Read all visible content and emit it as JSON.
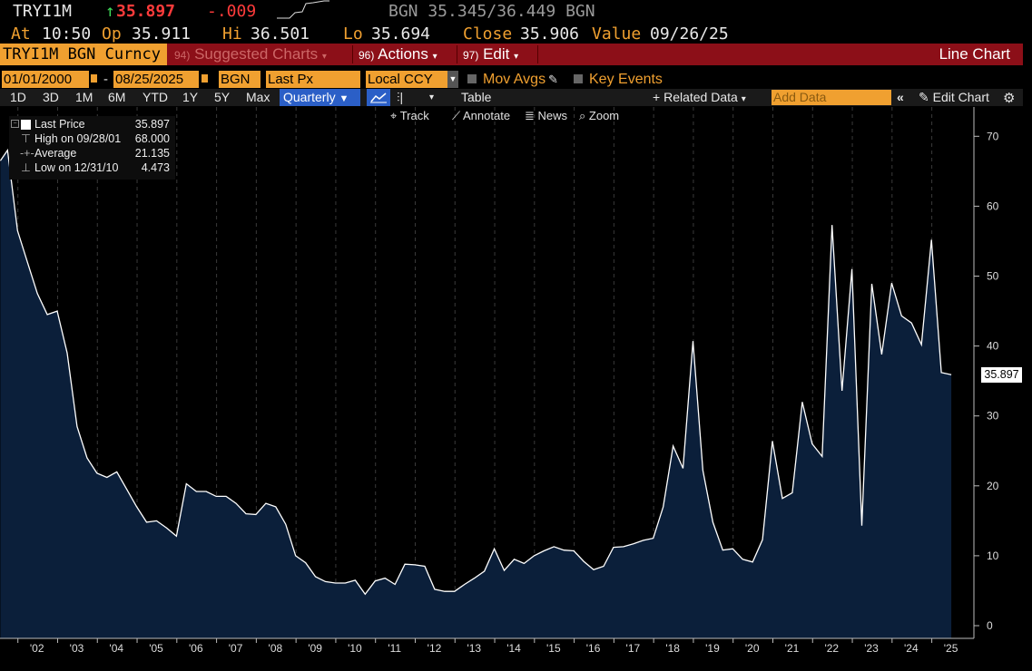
{
  "quote": {
    "ticker": "TRYI1M",
    "last": "35.897",
    "change": "-.009",
    "range_text": "BGN 35.345/36.449 BGN",
    "at_label": "At",
    "at_value": "10:50",
    "op_label": "Op",
    "op_value": "35.911",
    "hi_label": "Hi",
    "hi_value": "36.501",
    "lo_label": "Lo",
    "lo_value": "35.694",
    "close_label": "Close",
    "close_value": "35.906",
    "value_label": "Value",
    "value_date": "09/26/25"
  },
  "toolbar": {
    "security": "TRYI1M BGN Curncy",
    "suggested_num": "94)",
    "suggested_label": "Suggested Charts",
    "actions_num": "96)",
    "actions_label": "Actions",
    "edit_num": "97)",
    "edit_label": "Edit",
    "view_title": "Line Chart"
  },
  "inputs": {
    "start_date": "01/01/2000",
    "dash": "-",
    "end_date": "08/25/2025",
    "pricing_source": "BGN",
    "field": "Last Px",
    "currency": "Local CCY",
    "mov_avgs": "Mov Avgs",
    "key_events": "Key Events"
  },
  "periods": [
    "1D",
    "3D",
    "1M",
    "6M",
    "YTD",
    "1Y",
    "5Y",
    "Max"
  ],
  "period_selected": "Quarterly",
  "period_bar": {
    "table": "Table",
    "related_data": "Related Data",
    "add_data_placeholder": "Add Data",
    "edit_chart": "Edit Chart"
  },
  "chart_tools": [
    "Track",
    "Annotate",
    "News",
    "Zoom"
  ],
  "legend": {
    "last_label": "Last Price",
    "last_value": "35.897",
    "high_label": "High on 09/28/01",
    "high_value": "68.000",
    "avg_label": "Average",
    "avg_value": "21.135",
    "low_label": "Low on 12/31/10",
    "low_value": "4.473"
  },
  "colors": {
    "area_fill": "#0b1f3a",
    "line": "#ffffff",
    "accent_orange": "#f0a030",
    "header_red": "#8c0f18",
    "up_green": "#3fdc5a",
    "down_red": "#ff3b3b"
  },
  "chart_data": {
    "type": "area",
    "title": "",
    "xlabel": "",
    "ylabel": "",
    "ylim": [
      -2,
      74
    ],
    "xlim": [
      2001.55,
      2025.9
    ],
    "yticks": [
      0,
      10,
      20,
      30,
      40,
      50,
      60,
      70
    ],
    "y_axis_side": "right",
    "grid": "vertical dashed at year ticks",
    "xticks": [
      {
        "x": 2002.0,
        "label": "'02"
      },
      {
        "x": 2003.0,
        "label": "'03"
      },
      {
        "x": 2004.0,
        "label": "'04"
      },
      {
        "x": 2005.0,
        "label": "'05"
      },
      {
        "x": 2006.0,
        "label": "'06"
      },
      {
        "x": 2007.0,
        "label": "'07"
      },
      {
        "x": 2008.0,
        "label": "'08"
      },
      {
        "x": 2009.0,
        "label": "'09"
      },
      {
        "x": 2010.0,
        "label": "'10"
      },
      {
        "x": 2011.0,
        "label": "'11"
      },
      {
        "x": 2012.0,
        "label": "'12"
      },
      {
        "x": 2013.0,
        "label": "'13"
      },
      {
        "x": 2014.0,
        "label": "'14"
      },
      {
        "x": 2015.0,
        "label": "'15"
      },
      {
        "x": 2016.0,
        "label": "'16"
      },
      {
        "x": 2017.0,
        "label": "'17"
      },
      {
        "x": 2018.0,
        "label": "'18"
      },
      {
        "x": 2019.0,
        "label": "'19"
      },
      {
        "x": 2020.0,
        "label": "'20"
      },
      {
        "x": 2021.0,
        "label": "'21"
      },
      {
        "x": 2022.0,
        "label": "'22"
      },
      {
        "x": 2023.0,
        "label": "'23"
      },
      {
        "x": 2024.0,
        "label": "'24"
      },
      {
        "x": 2025.0,
        "label": "'25"
      }
    ],
    "last_value_label": "35.897",
    "series": [
      {
        "name": "Last Price",
        "points": [
          [
            2001.56,
            66.5
          ],
          [
            2001.74,
            68.0
          ],
          [
            2001.99,
            56.5
          ],
          [
            2002.24,
            52.0
          ],
          [
            2002.49,
            47.5
          ],
          [
            2002.74,
            44.5
          ],
          [
            2002.99,
            45.0
          ],
          [
            2003.24,
            39.0
          ],
          [
            2003.49,
            28.5
          ],
          [
            2003.74,
            24.0
          ],
          [
            2003.99,
            21.8
          ],
          [
            2004.24,
            21.2
          ],
          [
            2004.49,
            22.0
          ],
          [
            2004.74,
            19.5
          ],
          [
            2004.99,
            17.0
          ],
          [
            2005.24,
            14.8
          ],
          [
            2005.49,
            15.0
          ],
          [
            2005.74,
            14.0
          ],
          [
            2005.99,
            12.8
          ],
          [
            2006.24,
            20.3
          ],
          [
            2006.49,
            19.2
          ],
          [
            2006.74,
            19.2
          ],
          [
            2006.99,
            18.5
          ],
          [
            2007.24,
            18.5
          ],
          [
            2007.49,
            17.5
          ],
          [
            2007.74,
            16.0
          ],
          [
            2007.99,
            15.9
          ],
          [
            2008.24,
            17.5
          ],
          [
            2008.49,
            17.0
          ],
          [
            2008.74,
            14.5
          ],
          [
            2008.99,
            10.0
          ],
          [
            2009.24,
            9.0
          ],
          [
            2009.49,
            7.0
          ],
          [
            2009.74,
            6.3
          ],
          [
            2009.99,
            6.1
          ],
          [
            2010.24,
            6.1
          ],
          [
            2010.49,
            6.5
          ],
          [
            2010.74,
            4.5
          ],
          [
            2010.99,
            6.4
          ],
          [
            2011.24,
            6.8
          ],
          [
            2011.49,
            5.9
          ],
          [
            2011.74,
            8.8
          ],
          [
            2011.99,
            8.7
          ],
          [
            2012.24,
            8.5
          ],
          [
            2012.49,
            5.2
          ],
          [
            2012.74,
            4.9
          ],
          [
            2012.99,
            4.9
          ],
          [
            2013.24,
            5.9
          ],
          [
            2013.49,
            6.8
          ],
          [
            2013.74,
            7.8
          ],
          [
            2013.99,
            11.0
          ],
          [
            2014.24,
            7.9
          ],
          [
            2014.49,
            9.5
          ],
          [
            2014.74,
            8.9
          ],
          [
            2014.99,
            10.0
          ],
          [
            2015.24,
            10.7
          ],
          [
            2015.49,
            11.3
          ],
          [
            2015.74,
            10.8
          ],
          [
            2015.99,
            10.7
          ],
          [
            2016.24,
            9.2
          ],
          [
            2016.49,
            8.0
          ],
          [
            2016.74,
            8.5
          ],
          [
            2016.99,
            11.2
          ],
          [
            2017.24,
            11.3
          ],
          [
            2017.49,
            11.7
          ],
          [
            2017.74,
            12.2
          ],
          [
            2017.99,
            12.5
          ],
          [
            2018.24,
            17.0
          ],
          [
            2018.49,
            25.7
          ],
          [
            2018.74,
            22.5
          ],
          [
            2018.99,
            40.7
          ],
          [
            2019.24,
            22.2
          ],
          [
            2019.49,
            14.8
          ],
          [
            2019.74,
            10.8
          ],
          [
            2019.99,
            11.0
          ],
          [
            2020.24,
            9.5
          ],
          [
            2020.49,
            9.1
          ],
          [
            2020.74,
            12.3
          ],
          [
            2020.99,
            26.4
          ],
          [
            2021.24,
            18.2
          ],
          [
            2021.49,
            19.0
          ],
          [
            2021.74,
            32.0
          ],
          [
            2021.99,
            26.0
          ],
          [
            2022.24,
            24.2
          ],
          [
            2022.49,
            57.3
          ],
          [
            2022.74,
            33.6
          ],
          [
            2022.99,
            51.0
          ],
          [
            2023.24,
            14.3
          ],
          [
            2023.49,
            48.9
          ],
          [
            2023.74,
            38.8
          ],
          [
            2023.99,
            49.0
          ],
          [
            2024.24,
            44.3
          ],
          [
            2024.49,
            43.3
          ],
          [
            2024.74,
            40.2
          ],
          [
            2024.99,
            55.2
          ],
          [
            2025.24,
            36.2
          ],
          [
            2025.49,
            35.897
          ]
        ]
      }
    ]
  }
}
